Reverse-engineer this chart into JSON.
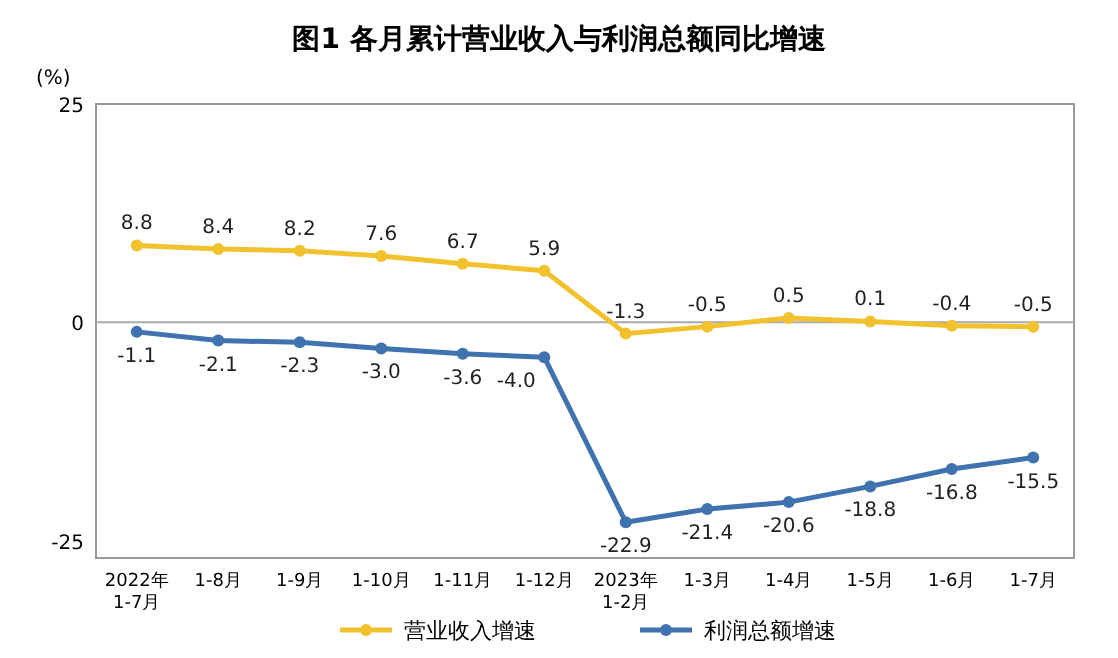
{
  "chart_data": {
    "type": "line",
    "title": "图1  各月累计营业收入与利润总额同比增速",
    "ylabel": "(%)",
    "categories": [
      "2022年\n1-7月",
      "1-8月",
      "1-9月",
      "1-10月",
      "1-11月",
      "1-12月",
      "2023年\n1-2月",
      "1-3月",
      "1-4月",
      "1-5月",
      "1-6月",
      "1-7月"
    ],
    "series": [
      {
        "name": "营业收入增速",
        "color": "#f2c12e",
        "values": [
          8.8,
          8.4,
          8.2,
          7.6,
          6.7,
          5.9,
          -1.3,
          -0.5,
          0.5,
          0.1,
          -0.4,
          -0.5
        ],
        "value_labels": [
          "8.8",
          "8.4",
          "8.2",
          "7.6",
          "6.7",
          "5.9",
          "-1.3",
          "-0.5",
          "0.5",
          "0.1",
          "-0.4",
          "-0.5"
        ]
      },
      {
        "name": "利润总额增速",
        "color": "#3f72ae",
        "values": [
          -1.1,
          -2.1,
          -2.3,
          -3.0,
          -3.6,
          -4.0,
          -22.9,
          -21.4,
          -20.6,
          -18.8,
          -16.8,
          -15.5
        ],
        "value_labels": [
          "-1.1",
          "-2.1",
          "-2.3",
          "-3.0",
          "-3.6",
          "-4.0",
          "-22.9",
          "-21.4",
          "-20.6",
          "-18.8",
          "-16.8",
          "-15.5"
        ]
      }
    ],
    "data_labels": false,
    "ylim": [
      -27,
      25
    ],
    "yticks": [
      -25,
      0,
      25
    ],
    "ref_lines": [
      {
        "axis": "y",
        "value": 0,
        "color": "#aaaaaa"
      }
    ],
    "legend": "bottom",
    "marker": "circle",
    "line_style": "solid",
    "grid": false
  }
}
